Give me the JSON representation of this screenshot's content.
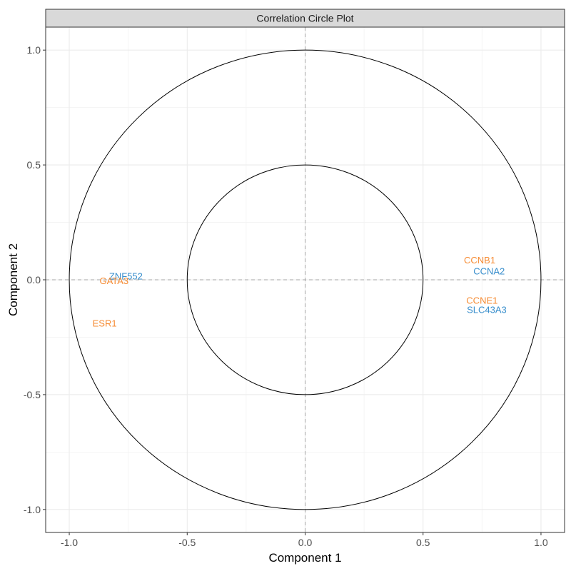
{
  "chart_data": {
    "type": "scatter",
    "title": "Correlation Circle Plot",
    "xlabel": "Component  1",
    "ylabel": "Component  2",
    "xlim": [
      -1.1,
      1.1
    ],
    "ylim": [
      -1.1,
      1.1
    ],
    "x_ticks": [
      -1.0,
      -0.5,
      0.0,
      0.5,
      1.0
    ],
    "y_ticks": [
      -1.0,
      -0.5,
      0.0,
      0.5,
      1.0
    ],
    "x_tick_labels": [
      "-1.0",
      "-0.5",
      "0.0",
      "0.5",
      "1.0"
    ],
    "y_tick_labels": [
      "-1.0",
      "-0.5",
      "0.0",
      "0.5",
      "1.0"
    ],
    "grid": true,
    "reference_lines": [
      0,
      0
    ],
    "circles": [
      1.0,
      0.5
    ],
    "colors": {
      "orange": "#F68B33",
      "blue": "#388ECC"
    },
    "points": [
      {
        "label": "CCNB1",
        "x": 0.74,
        "y": 0.085,
        "color": "#F68B33"
      },
      {
        "label": "CCNA2",
        "x": 0.78,
        "y": 0.037,
        "color": "#388ECC"
      },
      {
        "label": "CCNE1",
        "x": 0.75,
        "y": -0.09,
        "color": "#F68B33"
      },
      {
        "label": "SLC43A3",
        "x": 0.77,
        "y": -0.13,
        "color": "#388ECC"
      },
      {
        "label": "ZNF552",
        "x": -0.76,
        "y": 0.015,
        "color": "#388ECC"
      },
      {
        "label": "GATA3",
        "x": -0.81,
        "y": -0.005,
        "color": "#F68B33"
      },
      {
        "label": "ESR1",
        "x": -0.85,
        "y": -0.19,
        "color": "#F68B33"
      }
    ]
  }
}
